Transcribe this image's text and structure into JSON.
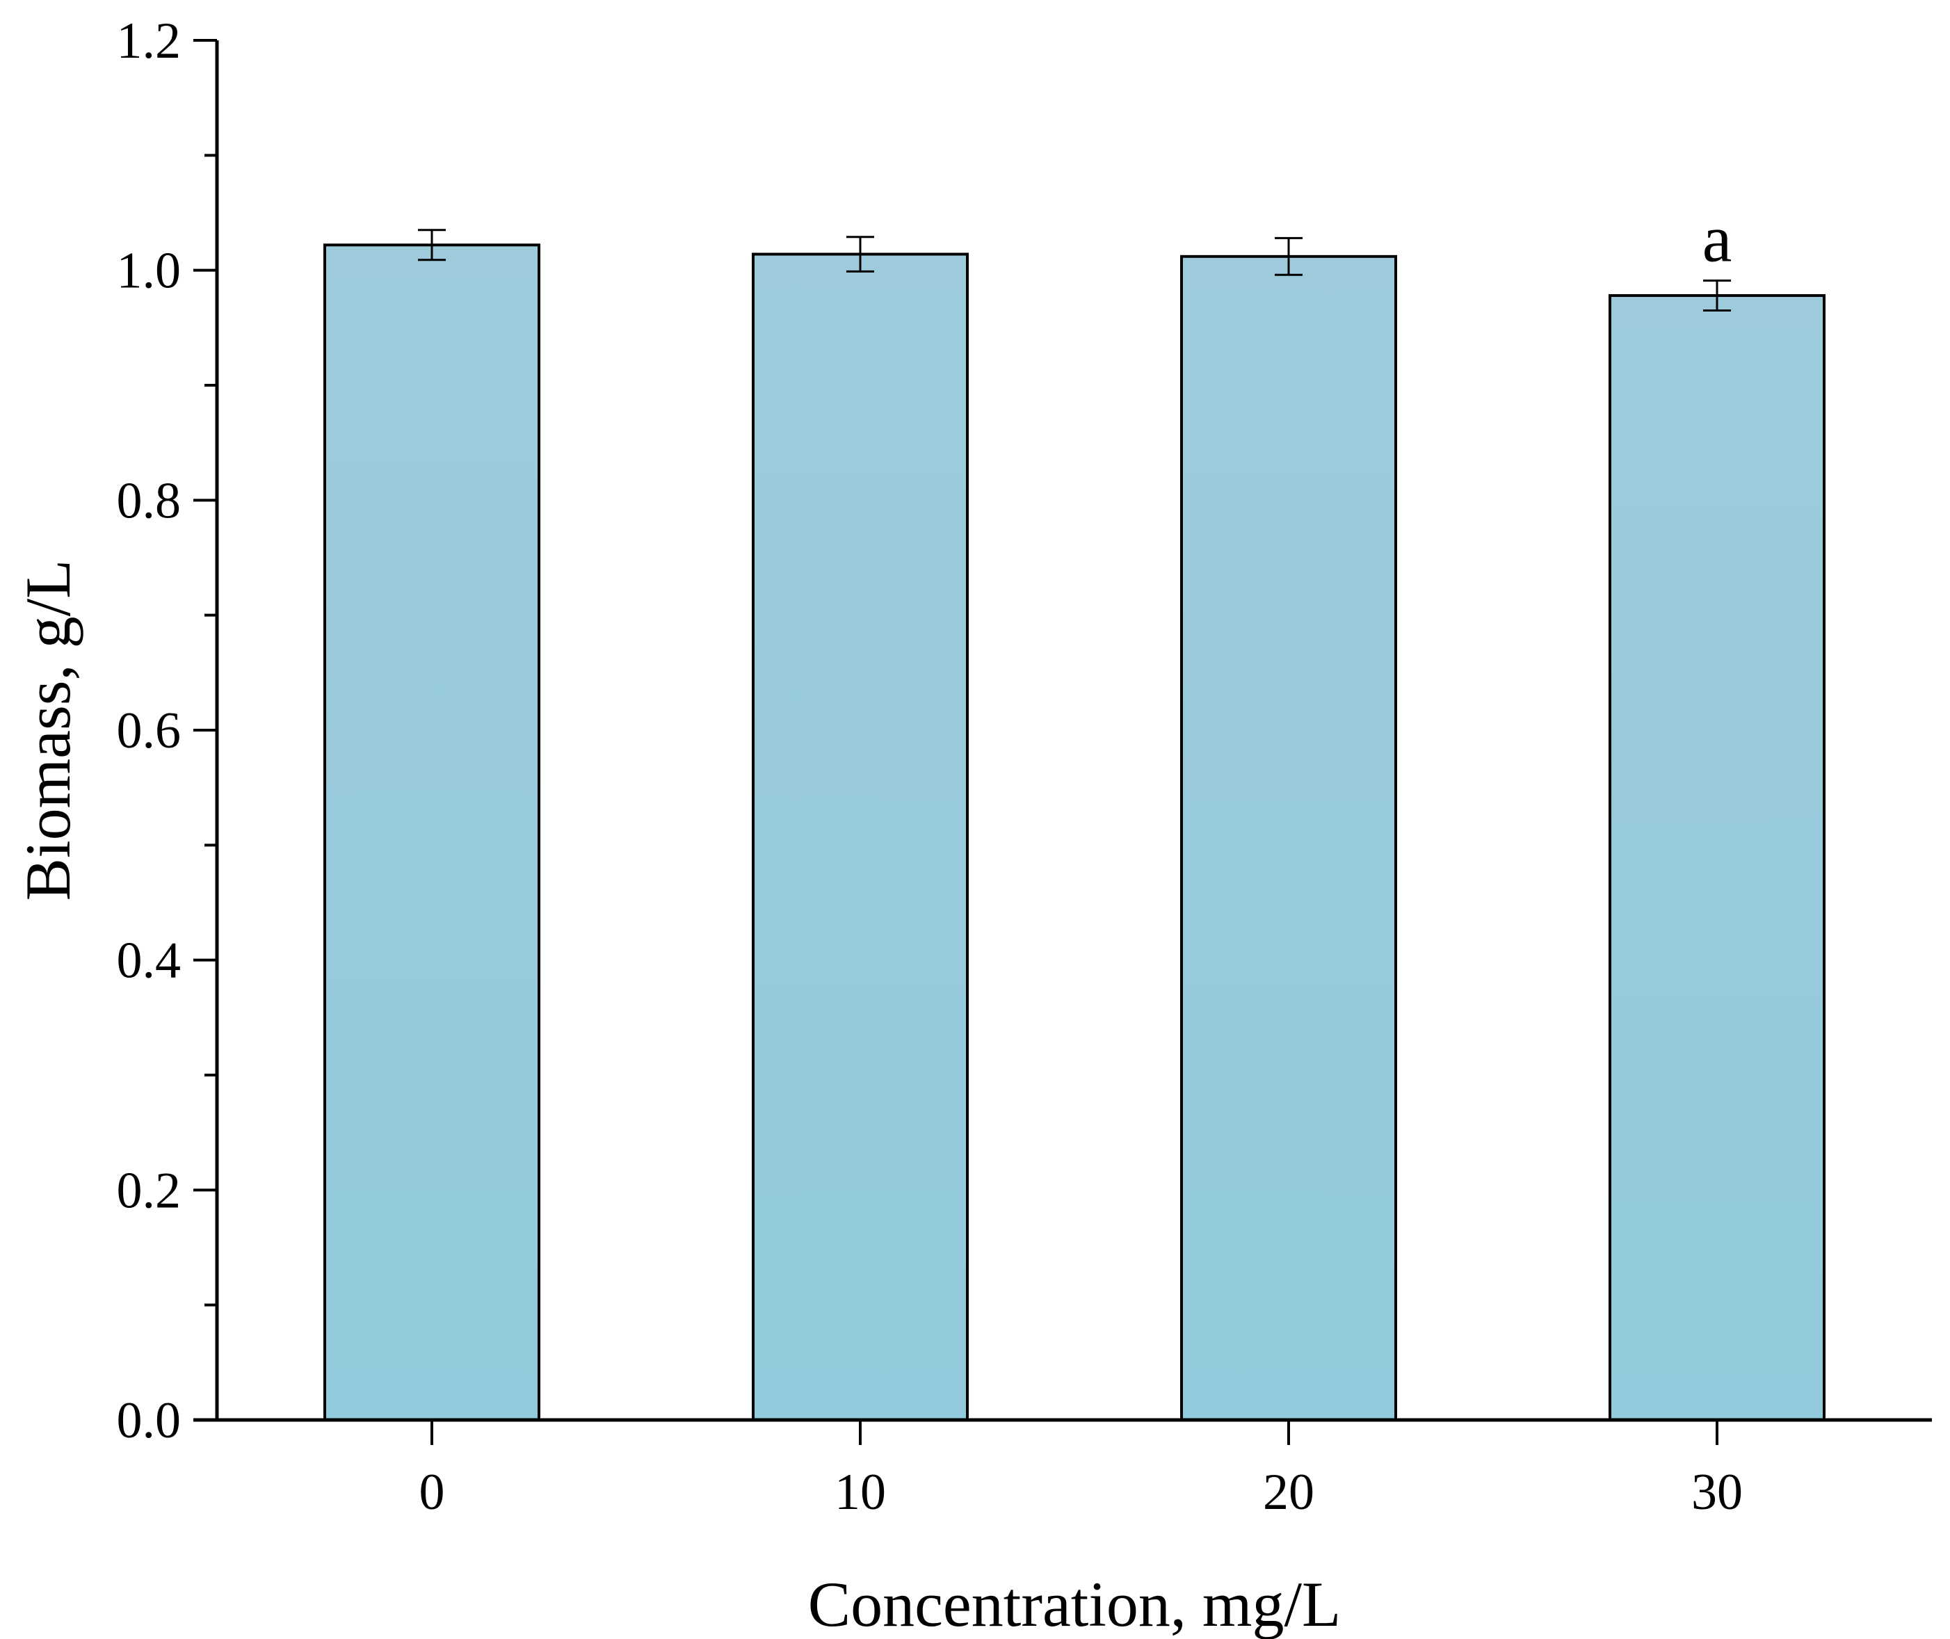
{
  "chart_data": {
    "type": "bar",
    "categories": [
      "0",
      "10",
      "20",
      "30"
    ],
    "values": [
      1.022,
      1.014,
      1.012,
      0.978
    ],
    "errors": [
      0.013,
      0.015,
      0.016,
      0.013
    ],
    "annotations": [
      "",
      "",
      "",
      "a"
    ],
    "xlabel": "Concentration, mg/L",
    "ylabel": "Biomass, g/L",
    "ylim": [
      0,
      1.2
    ],
    "yticks": [
      "0.0",
      "0.2",
      "0.4",
      "0.6",
      "0.8",
      "1.0",
      "1.2"
    ],
    "ytick_values": [
      0,
      0.2,
      0.4,
      0.6,
      0.8,
      1.0,
      1.2
    ],
    "grid": false,
    "legend": "none",
    "colors": {
      "bar_top": "#9dcbdc",
      "bar_bottom": "#91cadc",
      "axis": "#000000"
    }
  }
}
